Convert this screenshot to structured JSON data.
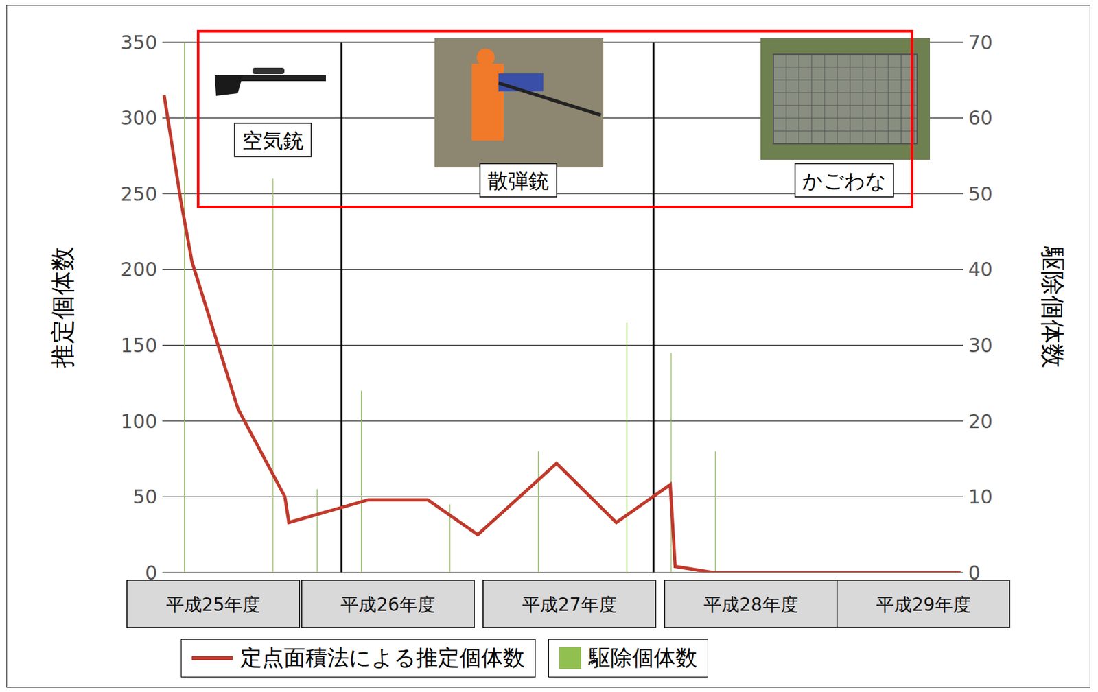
{
  "chart_data": {
    "type": "combo",
    "series": [
      {
        "name": "駆除個体数",
        "type": "bar",
        "color": "#92c050",
        "axis": "y2",
        "x": [
          0,
          2,
          3,
          4,
          6,
          8,
          10,
          11,
          12
        ],
        "values": [
          70,
          52,
          11,
          24,
          9,
          16,
          33,
          29,
          16
        ]
      },
      {
        "name": "定点面積法による推定個体数",
        "type": "line",
        "color": "#c0392b",
        "x": [
          -0.46,
          -0.08,
          0.17,
          1.21,
          2.27,
          2.36,
          4.16,
          5.5,
          6.63,
          8.41,
          9.76,
          10.98,
          11.09,
          11.95,
          17.54
        ],
        "values": [
          315,
          245,
          205,
          108,
          50,
          33,
          48,
          48,
          25,
          72,
          33,
          58,
          4,
          0,
          0
        ]
      }
    ],
    "xlim": [
      -0.5,
      17.6
    ],
    "xticks": [
      {
        "value": 0.65,
        "label": "平成25年度"
      },
      {
        "value": 4.6,
        "label": "平成26年度"
      },
      {
        "value": 8.7,
        "label": "平成27年度"
      },
      {
        "value": 12.8,
        "label": "平成28年度"
      },
      {
        "value": 16.7,
        "label": "平成29年度"
      }
    ],
    "ylabel": "推定個体数",
    "y2label": "駆除個体数",
    "ylim": [
      0,
      350
    ],
    "yticks": [
      0,
      50,
      100,
      150,
      200,
      250,
      300,
      350
    ],
    "y2lim": [
      0,
      70
    ],
    "y2ticks": [
      0,
      10,
      20,
      30,
      40,
      50,
      60,
      70
    ],
    "grid": true,
    "legend": "bottom",
    "dividers_x": [
      3.55,
      10.6
    ],
    "annotations": [
      "空気銃",
      "散弾銃",
      "かごわな"
    ]
  }
}
